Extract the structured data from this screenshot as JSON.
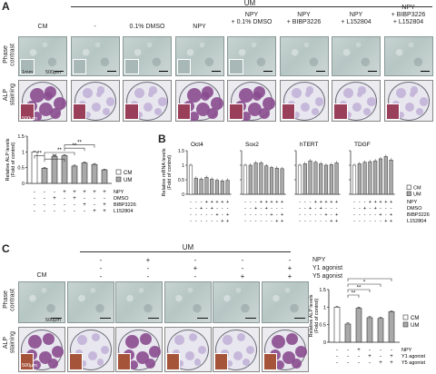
{
  "panels": {
    "A": {
      "letter": "A",
      "group_label": "UM",
      "columns": [
        "CM",
        "-",
        "0.1% DMSO",
        "NPY",
        "NPY\n+ 0.1% DMSO",
        "NPY\n+ BIBP3226",
        "NPY\n+ L152804",
        "NPY\n+ BIBP3226\n+ L152804"
      ],
      "row_labels": {
        "phase": "Phase\ncontrast",
        "alp": "ALP\nstaining"
      },
      "scale_labels": {
        "inset": "1mm",
        "main": "500µm",
        "alp": "500µm"
      },
      "chart_data": {
        "type": "bar",
        "ylabel": "Relative ALP levels\n(Fold of control)",
        "ylim": [
          0,
          1.5
        ],
        "yticks": [
          "0",
          "0.5",
          "1",
          "1.5"
        ],
        "values": [
          1.0,
          0.48,
          0.86,
          0.88,
          0.55,
          0.65,
          0.6,
          0.43
        ],
        "errors": [
          0.02,
          0.02,
          0.03,
          0.03,
          0.03,
          0.03,
          0.03,
          0.02
        ],
        "groups": [
          "CM",
          "UM",
          "UM",
          "UM",
          "UM",
          "UM",
          "UM",
          "UM"
        ],
        "legend": [
          "CM",
          "UM"
        ],
        "condition_rows": [
          {
            "label": "NPY",
            "marks": [
              "-",
              "-",
              "-",
              "+",
              "+",
              "+",
              "+",
              "+"
            ]
          },
          {
            "label": "DMSO",
            "marks": [
              "-",
              "-",
              "+",
              "-",
              "+",
              "-",
              "-",
              "-"
            ]
          },
          {
            "label": "BIBP3226",
            "marks": [
              "-",
              "-",
              "-",
              "-",
              "-",
              "+",
              "-",
              "+"
            ]
          },
          {
            "label": "L152804",
            "marks": [
              "-",
              "-",
              "-",
              "-",
              "-",
              "-",
              "+",
              "+"
            ]
          }
        ],
        "significance": [
          "**",
          "**",
          "**",
          "**",
          "**"
        ]
      }
    },
    "B": {
      "letter": "B",
      "chart_data": {
        "type": "bar",
        "ylabel": "Relative mRNA levels\n(Fold of control)",
        "ylim": [
          0,
          1.5
        ],
        "yticks": [
          "0",
          "0.5",
          "1",
          "1.5"
        ],
        "genes": [
          {
            "name": "Oct4",
            "values": [
              1.0,
              0.55,
              0.52,
              0.58,
              0.52,
              0.48,
              0.46,
              0.48
            ]
          },
          {
            "name": "Sox2",
            "values": [
              1.0,
              1.0,
              1.08,
              1.08,
              0.98,
              0.92,
              0.9,
              0.88
            ]
          },
          {
            "name": "hTERT",
            "values": [
              1.0,
              1.05,
              1.15,
              1.1,
              1.05,
              1.0,
              1.02,
              1.08
            ]
          },
          {
            "name": "TDGF",
            "values": [
              1.0,
              1.05,
              1.1,
              1.12,
              1.15,
              1.22,
              1.3,
              1.18
            ]
          }
        ],
        "legend": [
          "CM",
          "UM"
        ],
        "condition_rows": [
          {
            "label": "NPY",
            "marks": [
              "-",
              "-",
              "-",
              "+",
              "+",
              "+",
              "+",
              "+"
            ]
          },
          {
            "label": "DMSO",
            "marks": [
              "-",
              "-",
              "+",
              "-",
              "+",
              "-",
              "-",
              "-"
            ]
          },
          {
            "label": "BIBP3226",
            "marks": [
              "-",
              "-",
              "-",
              "-",
              "-",
              "+",
              "-",
              "+"
            ]
          },
          {
            "label": "L152804",
            "marks": [
              "-",
              "-",
              "-",
              "-",
              "-",
              "-",
              "+",
              "+"
            ]
          }
        ]
      }
    },
    "C": {
      "letter": "C",
      "group_label": "UM",
      "first_column": "CM",
      "condition_rows": [
        {
          "label": "NPY",
          "marks": [
            "-",
            "+",
            "-",
            "-",
            "-"
          ]
        },
        {
          "label": "Y1 agonist",
          "marks": [
            "-",
            "-",
            "+",
            "-",
            "+"
          ]
        },
        {
          "label": "Y5 agonist",
          "marks": [
            "-",
            "-",
            "-",
            "+",
            "+"
          ]
        }
      ],
      "row_labels": {
        "phase": "Phase\ncontrast",
        "alp": "ALP\nstaining"
      },
      "scale_labels": {
        "main": "500µm",
        "alp": "500µm"
      },
      "chart_data": {
        "type": "bar",
        "ylabel": "Relative ALP levels\n(Fold of control)",
        "ylim": [
          0,
          1.5
        ],
        "yticks": [
          "0",
          "0.5",
          "1",
          "1.5"
        ],
        "values": [
          1.0,
          0.52,
          0.97,
          0.7,
          0.68,
          0.87
        ],
        "errors": [
          0.02,
          0.03,
          0.03,
          0.03,
          0.03,
          0.02
        ],
        "groups": [
          "CM",
          "UM",
          "UM",
          "UM",
          "UM",
          "UM"
        ],
        "legend": [
          "CM",
          "UM"
        ],
        "condition_rows": [
          {
            "label": "NPY",
            "marks": [
              "-",
              "-",
              "+",
              "-",
              "-",
              "-"
            ]
          },
          {
            "label": "Y1 agonist",
            "marks": [
              "-",
              "-",
              "-",
              "+",
              "-",
              "+"
            ]
          },
          {
            "label": "Y5 agonist",
            "marks": [
              "-",
              "-",
              "-",
              "-",
              "+",
              "+"
            ]
          }
        ],
        "significance": [
          "**",
          "**",
          "*",
          "**"
        ]
      }
    }
  },
  "colors": {
    "cm_bar": "#ffffff",
    "um_bar": "#a9a9a9",
    "alp_stain": "#8a4c8f",
    "phase_bg": "#bfccca"
  }
}
